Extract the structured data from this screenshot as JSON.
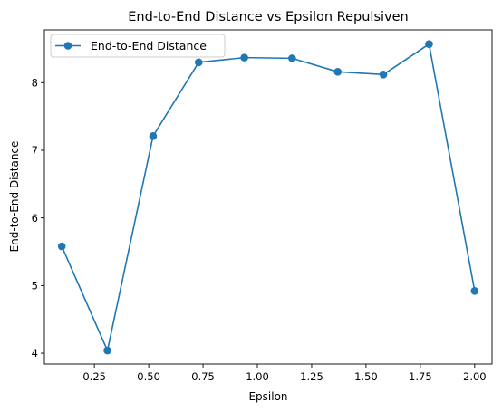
{
  "chart_data": {
    "type": "line",
    "title": "End-to-End Distance vs Epsilon Repulsiven",
    "xlabel": "Epsilon",
    "ylabel": "End-to-End Distance",
    "xlim": [
      0.02,
      2.08
    ],
    "ylim": [
      3.84,
      8.78
    ],
    "xticks": [
      0.25,
      0.5,
      0.75,
      1.0,
      1.25,
      1.5,
      1.75,
      2.0
    ],
    "xtick_labels": [
      "0.25",
      "0.50",
      "0.75",
      "1.00",
      "1.25",
      "1.50",
      "1.75",
      "2.00"
    ],
    "yticks": [
      4,
      5,
      6,
      7,
      8
    ],
    "ytick_labels": [
      "4",
      "5",
      "6",
      "7",
      "8"
    ],
    "grid": false,
    "legend_position": "top-left",
    "series": [
      {
        "name": "End-to-End Distance",
        "color": "#1f77b4",
        "marker": "circle",
        "x": [
          0.1,
          0.31,
          0.52,
          0.73,
          0.94,
          1.16,
          1.37,
          1.58,
          1.79,
          2.0
        ],
        "y": [
          5.58,
          4.04,
          7.21,
          8.3,
          8.37,
          8.36,
          8.16,
          8.12,
          8.57,
          4.92
        ]
      }
    ]
  }
}
